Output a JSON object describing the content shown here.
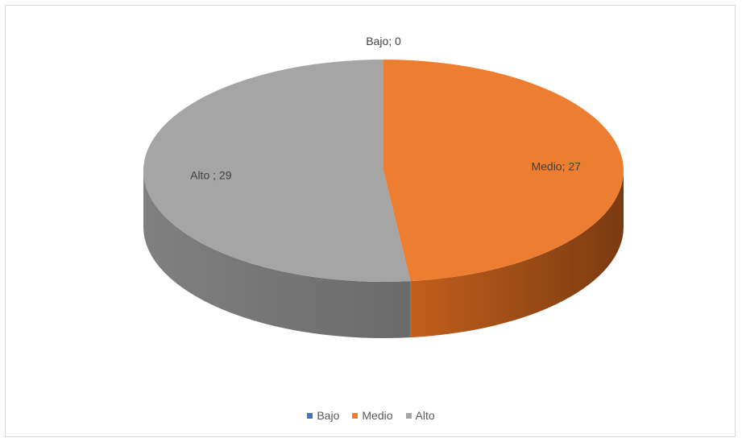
{
  "chart_data": {
    "type": "pie",
    "style": "3d",
    "categories": [
      "Bajo",
      "Medio",
      "Alto"
    ],
    "values": [
      0,
      27,
      29
    ],
    "data_labels": [
      "Bajo; 0",
      "Medio; 27",
      "Alto ; 29"
    ],
    "colors": [
      "#4472c4",
      "#ed7d31",
      "#a5a5a5"
    ],
    "side_colors": [
      "#2f528f",
      "#a54f16",
      "#6e6e6e"
    ],
    "legend_position": "bottom",
    "legend": [
      {
        "label": "Bajo",
        "color": "#4472c4"
      },
      {
        "label": "Medio",
        "color": "#ed7d31"
      },
      {
        "label": "Alto",
        "color": "#a5a5a5"
      }
    ]
  }
}
